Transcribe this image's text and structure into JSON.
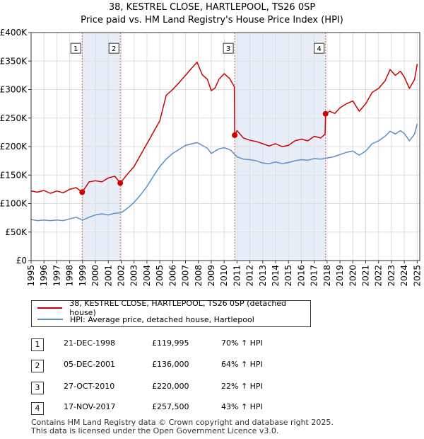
{
  "title_line1": "38, KESTREL CLOSE, HARTLEPOOL, TS26 0SP",
  "title_line2": "Price paid vs. HM Land Registry's House Price Index (HPI)",
  "chart_data": {
    "type": "line",
    "x_label": "",
    "y_label": "",
    "xlim": [
      1995,
      2025.2
    ],
    "ylim": [
      0,
      400000
    ],
    "y_ticks": [
      {
        "value": 0,
        "label": "£0"
      },
      {
        "value": 50000,
        "label": "£50K"
      },
      {
        "value": 100000,
        "label": "£100K"
      },
      {
        "value": 150000,
        "label": "£150K"
      },
      {
        "value": 200000,
        "label": "£200K"
      },
      {
        "value": 250000,
        "label": "£250K"
      },
      {
        "value": 300000,
        "label": "£300K"
      },
      {
        "value": 350000,
        "label": "£350K"
      },
      {
        "value": 400000,
        "label": "£400K"
      }
    ],
    "x_ticks": [
      "1995",
      "1996",
      "1997",
      "1998",
      "1999",
      "2000",
      "2001",
      "2002",
      "2003",
      "2004",
      "2005",
      "2006",
      "2007",
      "2008",
      "2009",
      "2010",
      "2011",
      "2012",
      "2013",
      "2014",
      "2015",
      "2016",
      "2017",
      "2018",
      "2019",
      "2020",
      "2021",
      "2022",
      "2023",
      "2024",
      "2025"
    ],
    "grid": true,
    "colors": {
      "property": "#cc0000",
      "hpi": "#5b8fc7",
      "shade": "#e8eef8",
      "vline": "#cc6666",
      "grid": "#dddddd"
    },
    "shaded_periods": [
      [
        1998.97,
        2001.93
      ],
      [
        2010.82,
        2017.88
      ]
    ],
    "series": [
      {
        "name": "38, KESTREL CLOSE, HARTLEPOOL, TS26 0SP (detached house)",
        "key": "property",
        "x": [
          1995.0,
          1995.5,
          1996.0,
          1996.5,
          1997.0,
          1997.5,
          1998.0,
          1998.5,
          1998.97,
          1999.5,
          2000.0,
          2000.5,
          2001.0,
          2001.5,
          2001.93,
          2002.5,
          2003.0,
          2003.5,
          2004.0,
          2004.5,
          2005.0,
          2005.5,
          2006.0,
          2006.5,
          2007.0,
          2007.5,
          2007.9,
          2008.3,
          2008.7,
          2009.0,
          2009.3,
          2009.6,
          2010.0,
          2010.4,
          2010.8,
          2010.82,
          2011.0,
          2011.5,
          2012.0,
          2012.5,
          2013.0,
          2013.5,
          2014.0,
          2014.5,
          2015.0,
          2015.5,
          2016.0,
          2016.5,
          2017.0,
          2017.5,
          2017.85,
          2017.88,
          2018.2,
          2018.6,
          2019.0,
          2019.5,
          2020.0,
          2020.5,
          2021.0,
          2021.5,
          2022.0,
          2022.5,
          2022.9,
          2023.3,
          2023.7,
          2024.0,
          2024.4,
          2024.8,
          2025.0
        ],
        "y": [
          122000,
          120000,
          123000,
          118000,
          122000,
          119000,
          125000,
          128000,
          119995,
          138000,
          140000,
          138000,
          145000,
          148000,
          136000,
          152000,
          165000,
          185000,
          205000,
          225000,
          245000,
          290000,
          300000,
          312000,
          325000,
          338000,
          348000,
          326000,
          318000,
          298000,
          303000,
          318000,
          328000,
          320000,
          305000,
          220000,
          228000,
          215000,
          211000,
          209000,
          205000,
          201000,
          205000,
          200000,
          202000,
          210000,
          213000,
          210000,
          218000,
          215000,
          222000,
          257500,
          262000,
          258000,
          268000,
          275000,
          280000,
          262000,
          275000,
          295000,
          302000,
          315000,
          335000,
          325000,
          332000,
          322000,
          302000,
          318000,
          345000
        ]
      },
      {
        "name": "HPI: Average price, detached house, Hartlepool",
        "key": "hpi",
        "x": [
          1995.0,
          1995.5,
          1996.0,
          1996.5,
          1997.0,
          1997.5,
          1998.0,
          1998.5,
          1999.0,
          1999.5,
          2000.0,
          2000.5,
          2001.0,
          2001.5,
          2002.0,
          2002.5,
          2003.0,
          2003.5,
          2004.0,
          2004.5,
          2005.0,
          2005.5,
          2006.0,
          2006.5,
          2007.0,
          2007.5,
          2007.9,
          2008.3,
          2008.7,
          2009.0,
          2009.3,
          2009.6,
          2010.0,
          2010.5,
          2011.0,
          2011.5,
          2012.0,
          2012.5,
          2013.0,
          2013.5,
          2014.0,
          2014.5,
          2015.0,
          2015.5,
          2016.0,
          2016.5,
          2017.0,
          2017.5,
          2018.0,
          2018.5,
          2019.0,
          2019.5,
          2020.0,
          2020.5,
          2021.0,
          2021.5,
          2022.0,
          2022.5,
          2022.9,
          2023.3,
          2023.7,
          2024.0,
          2024.4,
          2024.8,
          2025.0
        ],
        "y": [
          72000,
          70000,
          71000,
          70000,
          71000,
          70000,
          73000,
          76000,
          71000,
          76000,
          80000,
          82000,
          80000,
          83000,
          84000,
          92000,
          102000,
          115000,
          130000,
          148000,
          165000,
          178000,
          188000,
          195000,
          202000,
          205000,
          207000,
          202000,
          197000,
          188000,
          192000,
          196000,
          198000,
          194000,
          182000,
          178000,
          177000,
          175000,
          171000,
          170000,
          173000,
          170000,
          172000,
          175000,
          177000,
          176000,
          179000,
          178000,
          180000,
          182000,
          186000,
          190000,
          192000,
          185000,
          192000,
          205000,
          210000,
          218000,
          227000,
          222000,
          228000,
          223000,
          210000,
          222000,
          240000
        ]
      }
    ],
    "markers": [
      {
        "id": "1",
        "x": 1998.97,
        "y": 119995
      },
      {
        "id": "2",
        "x": 2001.93,
        "y": 136000
      },
      {
        "id": "3",
        "x": 2010.82,
        "y": 220000
      },
      {
        "id": "4",
        "x": 2017.88,
        "y": 257500
      }
    ],
    "marker_box_value": 370000
  },
  "legend": {
    "property": "38, KESTREL CLOSE, HARTLEPOOL, TS26 0SP (detached house)",
    "hpi": "HPI: Average price, detached house, Hartlepool"
  },
  "sales": [
    {
      "id": "1",
      "date": "21-DEC-1998",
      "price": "£119,995",
      "hpi": "70% ↑ HPI"
    },
    {
      "id": "2",
      "date": "05-DEC-2001",
      "price": "£136,000",
      "hpi": "64% ↑ HPI"
    },
    {
      "id": "3",
      "date": "27-OCT-2010",
      "price": "£220,000",
      "hpi": "22% ↑ HPI"
    },
    {
      "id": "4",
      "date": "17-NOV-2017",
      "price": "£257,500",
      "hpi": "43% ↑ HPI"
    }
  ],
  "footer_line1": "Contains HM Land Registry data © Crown copyright and database right 2025.",
  "footer_line2": "This data is licensed under the Open Government Licence v3.0."
}
